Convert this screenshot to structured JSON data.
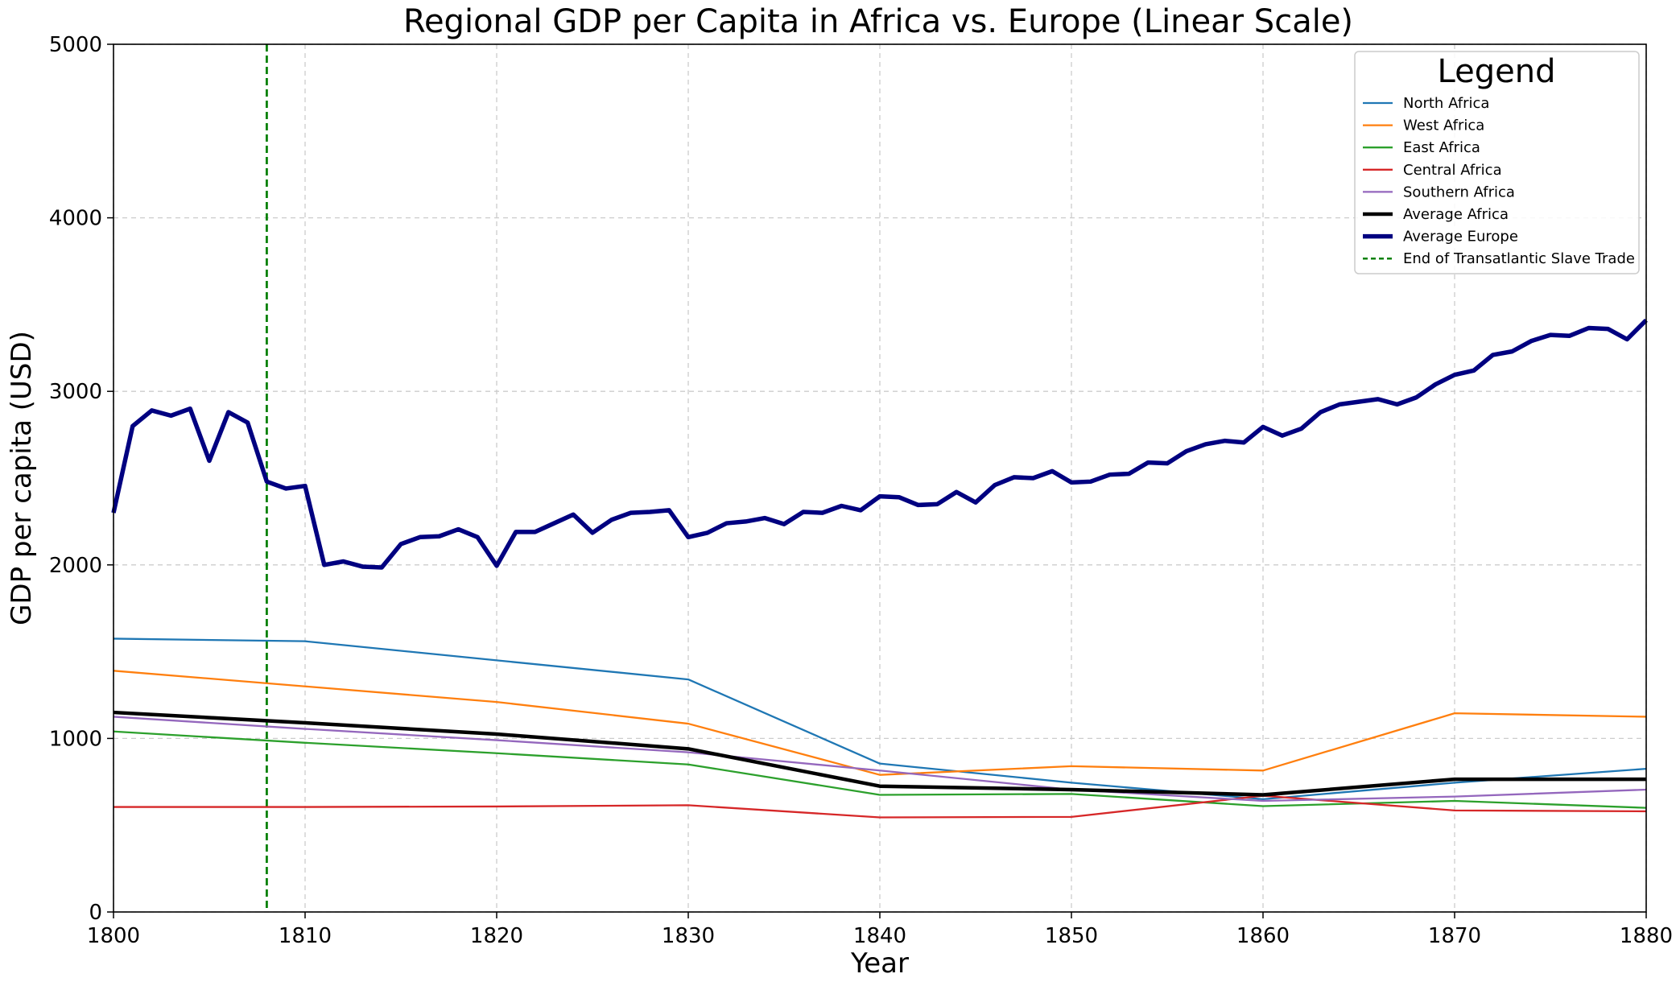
{
  "chart_data": {
    "type": "line",
    "title": "Regional GDP per Capita in Africa vs. Europe (Linear Scale)",
    "xlabel": "Year",
    "ylabel": "GDP per capita (USD)",
    "xlim": [
      1800,
      1880
    ],
    "ylim": [
      0,
      5000
    ],
    "xticks": [
      "1800",
      "1810",
      "1820",
      "1830",
      "1840",
      "1850",
      "1860",
      "1870",
      "1880"
    ],
    "yticks": [
      "0",
      "1000",
      "2000",
      "3000",
      "4000",
      "5000"
    ],
    "grid": true,
    "legend": {
      "title": "Legend",
      "placement": "top-right"
    },
    "series": [
      {
        "name": "North Africa",
        "color": "#1f77b4",
        "x": [
          1800,
          1810,
          1820,
          1830,
          1840,
          1850,
          1860,
          1870,
          1880
        ],
        "y": [
          1575,
          1560,
          1450,
          1340,
          855,
          745,
          650,
          745,
          825
        ]
      },
      {
        "name": "West Africa",
        "color": "#ff7f0e",
        "x": [
          1800,
          1810,
          1820,
          1830,
          1840,
          1850,
          1860,
          1870,
          1880
        ],
        "y": [
          1390,
          1300,
          1210,
          1085,
          790,
          840,
          815,
          1145,
          1125
        ]
      },
      {
        "name": "East Africa",
        "color": "#2ca02c",
        "x": [
          1800,
          1810,
          1820,
          1830,
          1840,
          1850,
          1860,
          1870,
          1880
        ],
        "y": [
          1040,
          975,
          915,
          850,
          675,
          680,
          610,
          640,
          600
        ]
      },
      {
        "name": "Central Africa",
        "color": "#d62728",
        "x": [
          1800,
          1810,
          1820,
          1830,
          1840,
          1850,
          1860,
          1870,
          1880
        ],
        "y": [
          605,
          605,
          608,
          615,
          545,
          548,
          670,
          585,
          580
        ]
      },
      {
        "name": "Southern Africa",
        "color": "#9467bd",
        "x": [
          1800,
          1810,
          1820,
          1830,
          1840,
          1850,
          1860,
          1870,
          1880
        ],
        "y": [
          1125,
          1055,
          990,
          920,
          815,
          705,
          640,
          665,
          705
        ]
      },
      {
        "name": "Average Africa",
        "color": "#000000",
        "x": [
          1800,
          1810,
          1820,
          1830,
          1840,
          1850,
          1860,
          1870,
          1880
        ],
        "y": [
          1150,
          1090,
          1025,
          940,
          725,
          705,
          675,
          765,
          765
        ]
      },
      {
        "name": "Average Europe",
        "color": "#000080",
        "x": [
          1800,
          1801,
          1802,
          1803,
          1804,
          1805,
          1806,
          1807,
          1808,
          1809,
          1810,
          1811,
          1812,
          1813,
          1814,
          1815,
          1816,
          1817,
          1818,
          1819,
          1820,
          1821,
          1822,
          1823,
          1824,
          1825,
          1826,
          1827,
          1828,
          1829,
          1830,
          1831,
          1832,
          1833,
          1834,
          1835,
          1836,
          1837,
          1838,
          1839,
          1840,
          1841,
          1842,
          1843,
          1844,
          1845,
          1846,
          1847,
          1848,
          1849,
          1850,
          1851,
          1852,
          1853,
          1854,
          1855,
          1856,
          1857,
          1858,
          1859,
          1860,
          1861,
          1862,
          1863,
          1864,
          1865,
          1866,
          1867,
          1868,
          1869,
          1870,
          1871,
          1872,
          1873,
          1874,
          1875,
          1876,
          1877,
          1878,
          1879,
          1880
        ],
        "y": [
          2300,
          2800,
          2890,
          2860,
          2900,
          2600,
          2880,
          2820,
          2480,
          2440,
          2455,
          2000,
          2020,
          1990,
          1985,
          2120,
          2160,
          2165,
          2205,
          2160,
          1995,
          2190,
          2190,
          2240,
          2290,
          2185,
          2260,
          2300,
          2305,
          2315,
          2160,
          2185,
          2240,
          2250,
          2270,
          2235,
          2305,
          2300,
          2340,
          2315,
          2395,
          2390,
          2345,
          2350,
          2420,
          2360,
          2460,
          2505,
          2500,
          2540,
          2475,
          2480,
          2520,
          2525,
          2590,
          2585,
          2655,
          2695,
          2715,
          2705,
          2795,
          2745,
          2785,
          2880,
          2925,
          2940,
          2955,
          2925,
          2965,
          3040,
          3095,
          3120,
          3210,
          3230,
          3290,
          3325,
          3320,
          3365,
          3360,
          3300,
          3410
        ]
      }
    ],
    "annotations": [
      {
        "type": "vline",
        "x": 1808,
        "label": "End of Transatlantic Slave Trade",
        "color": "#008000"
      }
    ]
  }
}
